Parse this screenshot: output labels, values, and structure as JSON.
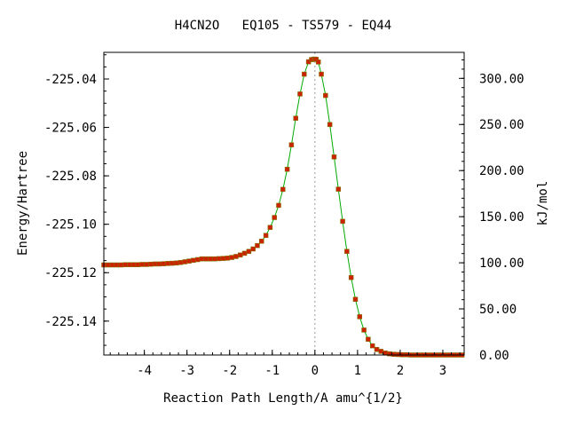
{
  "chart_data": {
    "type": "scatter",
    "title": "H4CN2O   EQ105 - TS579 - EQ44",
    "xlabel": "Reaction Path Length/A amu^{1/2}",
    "ylabel": "Energy/Hartree",
    "y2label": "kJ/mol",
    "xlim": [
      -4.95,
      3.5
    ],
    "ylim": [
      -225.154,
      -225.029
    ],
    "y2lim": [
      0.0,
      328.2
    ],
    "grid": false,
    "xticks": [
      -4,
      -3,
      -2,
      -1,
      0,
      1,
      2,
      3
    ],
    "xtick_labels": [
      "-4",
      "-3",
      "-2",
      "-1",
      "0",
      "1",
      "2",
      "3"
    ],
    "yticks": [
      -225.04,
      -225.06,
      -225.08,
      -225.1,
      -225.12,
      -225.14
    ],
    "ytick_labels": [
      "-225.04",
      "-225.06",
      "-225.08",
      "-225.10",
      "-225.12",
      "-225.14"
    ],
    "y2ticks": [
      300,
      250,
      200,
      150,
      100,
      50,
      0
    ],
    "y2tick_labels": [
      "300.00",
      "250.00",
      "200.00",
      "150.00",
      "100.00",
      "50.00",
      "0.00"
    ],
    "ts_x": 0.0,
    "series": [
      {
        "marker_color": "#cc2200",
        "line_color": "#00aa00",
        "x": [
          -4.95,
          -4.85,
          -4.75,
          -4.65,
          -4.55,
          -4.45,
          -4.35,
          -4.25,
          -4.15,
          -4.05,
          -3.95,
          -3.85,
          -3.75,
          -3.65,
          -3.55,
          -3.45,
          -3.35,
          -3.25,
          -3.15,
          -3.05,
          -2.95,
          -2.85,
          -2.75,
          -2.65,
          -2.55,
          -2.45,
          -2.35,
          -2.25,
          -2.15,
          -2.05,
          -1.95,
          -1.85,
          -1.75,
          -1.65,
          -1.55,
          -1.45,
          -1.35,
          -1.25,
          -1.15,
          -1.05,
          -0.95,
          -0.85,
          -0.75,
          -0.65,
          -0.55,
          -0.45,
          -0.35,
          -0.25,
          -0.15,
          -0.08,
          -0.03,
          0.0,
          0.03,
          0.08,
          0.15,
          0.25,
          0.35,
          0.45,
          0.55,
          0.65,
          0.75,
          0.85,
          0.95,
          1.05,
          1.15,
          1.25,
          1.35,
          1.45,
          1.55,
          1.65,
          1.75,
          1.85,
          1.95,
          2.05,
          2.15,
          2.25,
          2.35,
          2.45,
          2.55,
          2.65,
          2.75,
          2.85,
          2.95,
          3.05,
          3.15,
          3.25,
          3.35,
          3.45
        ],
        "y": [
          -225.1168,
          -225.1168,
          -225.1168,
          -225.1168,
          -225.1168,
          -225.1167,
          -225.1167,
          -225.1167,
          -225.1167,
          -225.1166,
          -225.1166,
          -225.1165,
          -225.1164,
          -225.1164,
          -225.1163,
          -225.1162,
          -225.1161,
          -225.116,
          -225.1158,
          -225.1155,
          -225.1152,
          -225.1149,
          -225.1146,
          -225.1143,
          -225.1143,
          -225.1143,
          -225.1143,
          -225.1142,
          -225.1141,
          -225.114,
          -225.1137,
          -225.1133,
          -225.1127,
          -225.112,
          -225.1112,
          -225.1102,
          -225.1088,
          -225.107,
          -225.1046,
          -225.1013,
          -225.0972,
          -225.0922,
          -225.0856,
          -225.0773,
          -225.0672,
          -225.0562,
          -225.0462,
          -225.038,
          -225.0329,
          -225.032,
          -225.0318,
          -225.0318,
          -225.0319,
          -225.033,
          -225.038,
          -225.0468,
          -225.0588,
          -225.0722,
          -225.0855,
          -225.0988,
          -225.1112,
          -225.122,
          -225.131,
          -225.1382,
          -225.1437,
          -225.1475,
          -225.1502,
          -225.1517,
          -225.1525,
          -225.1532,
          -225.1535,
          -225.1537,
          -225.1538,
          -225.1539,
          -225.1539,
          -225.154,
          -225.154,
          -225.154,
          -225.154,
          -225.154,
          -225.154,
          -225.154,
          -225.154,
          -225.154,
          -225.154,
          -225.154,
          -225.154,
          -225.154
        ]
      }
    ]
  }
}
